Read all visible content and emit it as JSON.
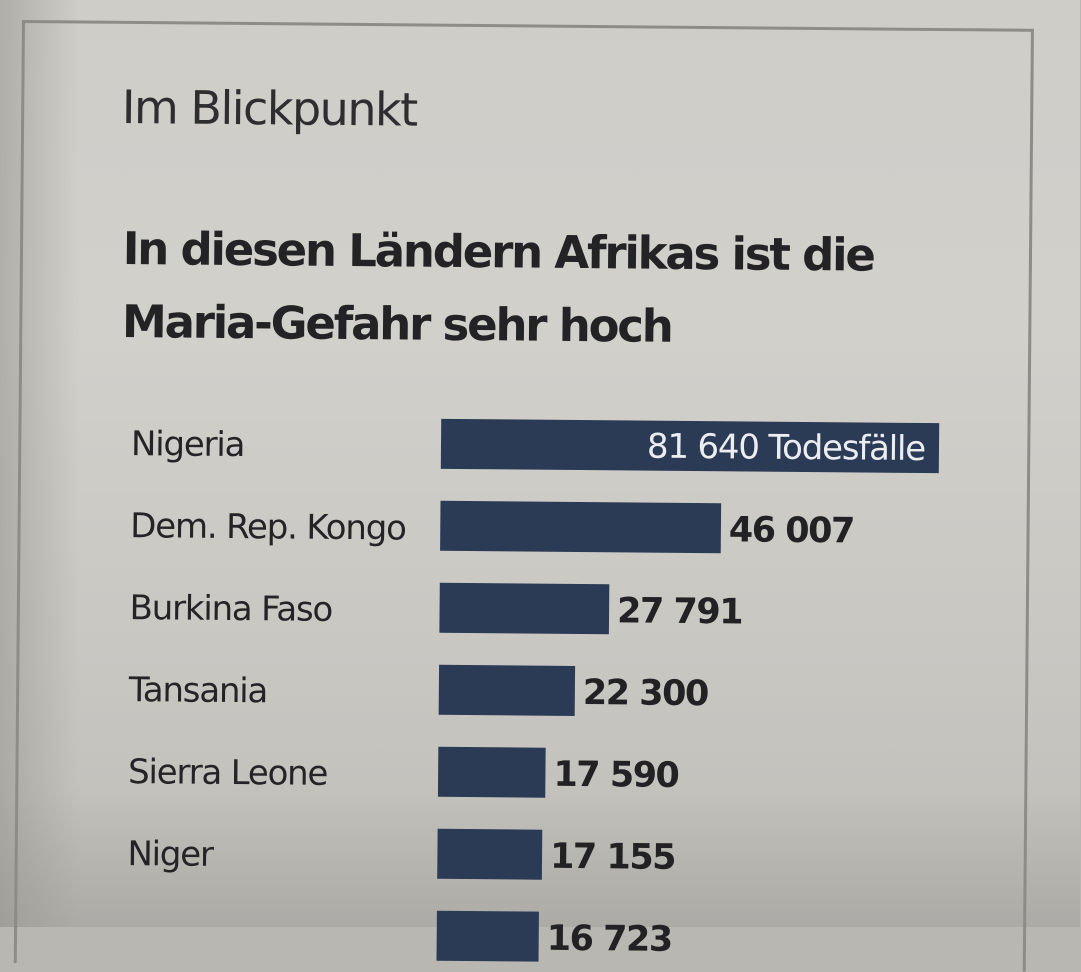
{
  "kicker": "Im Blickpunkt",
  "headline": "In diesen Ländern Afrikas ist die Maria-Gefahr sehr hoch",
  "chart_data": {
    "type": "bar",
    "orientation": "horizontal",
    "title": "In diesen Ländern Afrikas ist die Maria-Gefahr sehr hoch",
    "xlabel": "",
    "ylabel": "",
    "xlim": [
      0,
      81640
    ],
    "grid": false,
    "legend": "none",
    "unit_label": "Todesfälle",
    "categories": [
      "Nigeria",
      "Dem. Rep. Kongo",
      "Burkina Faso",
      "Tansania",
      "Sierra Leone",
      "Niger",
      ""
    ],
    "values": [
      81640,
      46007,
      27791,
      22300,
      17590,
      17155,
      16723
    ],
    "value_labels": [
      "81 640 Todesfälle",
      "46 007",
      "27 791",
      "22 300",
      "17 590",
      "17 155",
      "16 723"
    ],
    "bar_color": "#2b3a55"
  }
}
